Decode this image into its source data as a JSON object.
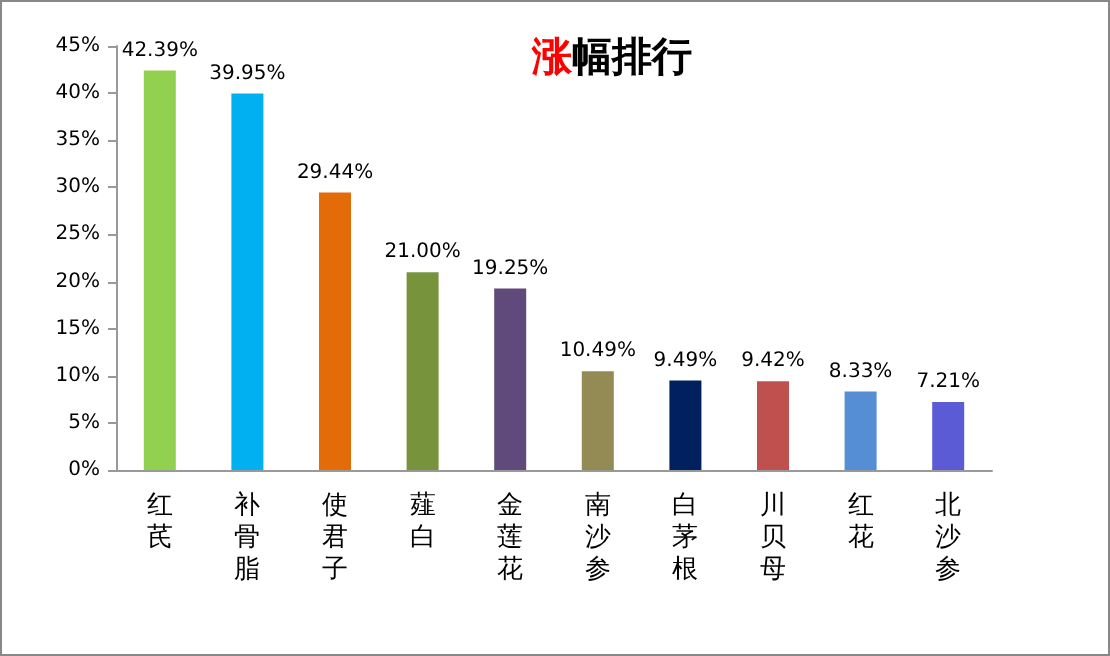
{
  "chart_data": {
    "type": "bar",
    "title": "涨幅排行",
    "categories": [
      "红芪",
      "补骨脂",
      "使君子",
      "薤白",
      "金莲花",
      "南沙参",
      "白茅根",
      "川贝母",
      "红花",
      "北沙参"
    ],
    "values": [
      42.39,
      39.95,
      29.44,
      21.0,
      19.25,
      10.49,
      9.49,
      9.42,
      8.33,
      7.21
    ],
    "value_labels": [
      "42.39%",
      "39.95%",
      "29.44%",
      "21.00%",
      "19.25%",
      "10.49%",
      "9.49%",
      "9.42%",
      "8.33%",
      "7.21%"
    ],
    "colors": [
      "#92d050",
      "#00b0f0",
      "#e36c09",
      "#77933c",
      "#604a7b",
      "#948a54",
      "#002060",
      "#c0504d",
      "#558ed5",
      "#5b5bd6"
    ],
    "ylim": [
      0,
      45
    ],
    "yticks": [
      {
        "value": 0,
        "label": "0%"
      },
      {
        "value": 5,
        "label": "5%"
      },
      {
        "value": 10,
        "label": "10%"
      },
      {
        "value": 15,
        "label": "15%"
      },
      {
        "value": 20,
        "label": "20%"
      },
      {
        "value": 25,
        "label": "25%"
      },
      {
        "value": 30,
        "label": "30%"
      },
      {
        "value": 35,
        "label": "35%"
      },
      {
        "value": 40,
        "label": "40%"
      },
      {
        "value": 45,
        "label": "45%"
      }
    ],
    "grid": false
  }
}
